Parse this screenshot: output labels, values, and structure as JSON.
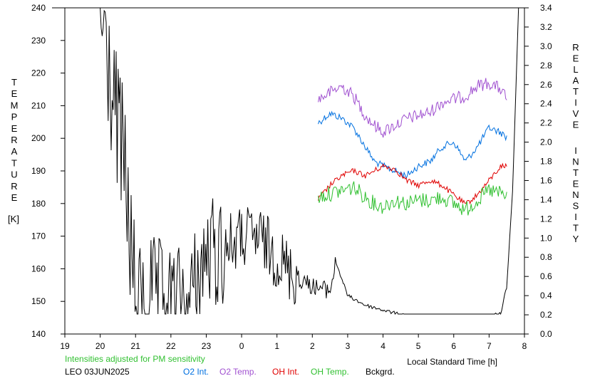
{
  "chart_data": {
    "type": "line",
    "ylabel_left_letters": [
      "T",
      "E",
      "M",
      "P",
      "E",
      "R",
      "A",
      "T",
      "U",
      "R",
      "E"
    ],
    "ylabel_left_unit": "[K]",
    "ylabel_right_letters_1": [
      "R",
      "E",
      "L",
      "A",
      "T",
      "I",
      "V",
      "E"
    ],
    "ylabel_right_letters_2": [
      "I",
      "N",
      "T",
      "E",
      "N",
      "S",
      "I",
      "T",
      "Y"
    ],
    "xlabel": "Local Standard Time [h]",
    "note": "Intensities adjusted for PM sensitivity",
    "station_date": "LEO 03JUN2025",
    "x_ticks": [
      "19",
      "20",
      "21",
      "22",
      "23",
      "0",
      "1",
      "2",
      "3",
      "4",
      "5",
      "6",
      "7",
      "8"
    ],
    "y_left_ticks": [
      "140",
      "150",
      "160",
      "170",
      "180",
      "190",
      "200",
      "210",
      "220",
      "230",
      "240"
    ],
    "y_right_ticks": [
      "0.0",
      "0.2",
      "0.4",
      "0.6",
      "0.8",
      "1.0",
      "1.2",
      "1.4",
      "1.6",
      "1.8",
      "2.0",
      "2.2",
      "2.4",
      "2.6",
      "2.8",
      "3.0",
      "3.2",
      "3.4"
    ],
    "x_range_hours_after_19": [
      0,
      13
    ],
    "ylim_left": [
      140,
      240
    ],
    "ylim_right": [
      0.0,
      3.4
    ],
    "colors": {
      "o2_int": "#0070e0",
      "o2_temp": "#a050d0",
      "oh_int": "#e00000",
      "oh_temp": "#30c030",
      "bckgrd": "#000000",
      "note": "#30c030"
    },
    "series": [
      {
        "name": "O2 Int.",
        "axis": "right",
        "x": [
          "2:10",
          "2:30",
          "2:50",
          "3:10",
          "3:30",
          "3:45",
          "4:00",
          "4:20",
          "4:40",
          "5:00",
          "5:20",
          "5:40",
          "6:00",
          "6:20",
          "6:40",
          "7:00",
          "7:20",
          "7:30"
        ],
        "values": [
          2.2,
          2.3,
          2.25,
          2.15,
          1.95,
          1.8,
          1.75,
          1.7,
          1.65,
          1.75,
          1.8,
          1.95,
          2.0,
          1.8,
          1.95,
          2.15,
          2.1,
          2.05
        ]
      },
      {
        "name": "O2 Temp.",
        "axis": "left",
        "x": [
          "2:10",
          "2:30",
          "2:50",
          "3:10",
          "3:30",
          "3:45",
          "4:00",
          "4:20",
          "4:40",
          "5:00",
          "5:20",
          "5:40",
          "6:00",
          "6:20",
          "6:40",
          "7:00",
          "7:20",
          "7:30"
        ],
        "values": [
          212,
          214,
          216,
          213,
          207,
          204,
          202,
          204,
          206,
          207,
          208,
          211,
          212,
          213,
          216,
          217,
          215,
          212
        ]
      },
      {
        "name": "OH Int.",
        "axis": "right",
        "x": [
          "2:10",
          "2:30",
          "2:50",
          "3:10",
          "3:30",
          "3:45",
          "4:00",
          "4:20",
          "4:40",
          "5:00",
          "5:20",
          "5:40",
          "6:00",
          "6:20",
          "6:40",
          "7:00",
          "7:20",
          "7:30"
        ],
        "values": [
          1.4,
          1.55,
          1.65,
          1.7,
          1.65,
          1.7,
          1.75,
          1.72,
          1.6,
          1.55,
          1.6,
          1.55,
          1.45,
          1.35,
          1.45,
          1.6,
          1.75,
          1.75
        ]
      },
      {
        "name": "OH Temp.",
        "axis": "left",
        "x": [
          "2:10",
          "2:30",
          "2:50",
          "3:10",
          "3:30",
          "3:45",
          "4:00",
          "4:20",
          "4:40",
          "5:00",
          "5:20",
          "5:40",
          "6:00",
          "6:20",
          "6:40",
          "7:00",
          "7:20",
          "7:30"
        ],
        "values": [
          182,
          183,
          184,
          185,
          182,
          180,
          179,
          181,
          180,
          181,
          181,
          182,
          180,
          178,
          181,
          184,
          183,
          182
        ]
      },
      {
        "name": "Bckgrd.",
        "axis": "right",
        "x": [
          "20:00",
          "20:20",
          "20:40",
          "21:00",
          "21:30",
          "22:00",
          "22:30",
          "23:00",
          "23:30",
          "0:00",
          "0:30",
          "1:00",
          "1:30",
          "2:00",
          "2:30",
          "2:40",
          "3:00",
          "3:30",
          "4:00",
          "4:30",
          "5:00",
          "5:30",
          "6:00",
          "6:30",
          "7:00",
          "7:20",
          "7:30",
          "7:40",
          "7:50"
        ],
        "values": [
          3.4,
          2.5,
          1.8,
          0.3,
          0.4,
          0.3,
          0.3,
          0.8,
          0.9,
          1.0,
          1.0,
          0.8,
          0.6,
          0.5,
          0.45,
          0.75,
          0.4,
          0.3,
          0.25,
          0.2,
          0.18,
          0.17,
          0.16,
          0.15,
          0.18,
          0.22,
          0.5,
          1.5,
          3.4
        ]
      }
    ],
    "legend_placement": "bottom",
    "grid": false
  }
}
